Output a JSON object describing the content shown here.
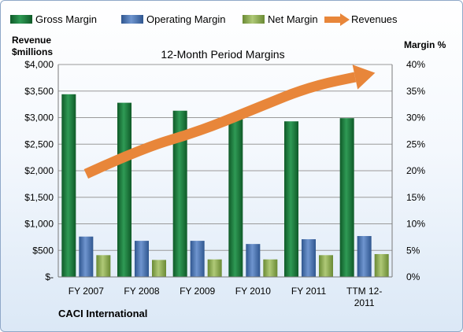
{
  "chart_data": {
    "type": "bar",
    "title": "12-Month Period Margins",
    "company": "CACI International",
    "ylabel_left": [
      "Revenue",
      "$millions"
    ],
    "ylabel_right": "Margin %",
    "categories": [
      [
        "FY 2007"
      ],
      [
        "FY 2008"
      ],
      [
        "FY 2009"
      ],
      [
        "FY 2010"
      ],
      [
        "FY 2011"
      ],
      [
        "TTM 12-",
        "2011"
      ]
    ],
    "y_left": {
      "min": 0,
      "max": 4000,
      "step": 500,
      "tick_labels": [
        "$-",
        "$500",
        "$1,000",
        "$1,500",
        "$2,000",
        "$2,500",
        "$3,000",
        "$3,500",
        "$4,000"
      ]
    },
    "y_right": {
      "min": 0,
      "max": 40,
      "step": 5,
      "tick_labels": [
        "0%",
        "5%",
        "10%",
        "15%",
        "20%",
        "25%",
        "30%",
        "35%",
        "40%"
      ]
    },
    "grid": true,
    "legend_position": "top",
    "series": [
      {
        "name": "Gross Margin",
        "type": "bar",
        "axis": "right",
        "color": "#1f7a3c",
        "values": [
          34.4,
          32.8,
          31.3,
          29.9,
          29.3,
          29.9
        ]
      },
      {
        "name": "Operating Margin",
        "type": "bar",
        "axis": "right",
        "color": "#4f78b8",
        "values": [
          7.6,
          6.8,
          6.8,
          6.2,
          7.1,
          7.7
        ]
      },
      {
        "name": "Net Margin",
        "type": "bar",
        "axis": "right",
        "color": "#8fb054",
        "values": [
          4.1,
          3.2,
          3.3,
          3.3,
          4.1,
          4.3
        ]
      },
      {
        "name": "Revenues",
        "type": "line",
        "axis": "left",
        "color": "#e8863a",
        "values": [
          1940,
          2420,
          2730,
          3150,
          3580,
          3800
        ]
      }
    ]
  }
}
